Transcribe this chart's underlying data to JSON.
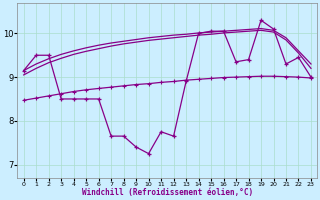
{
  "x": [
    0,
    1,
    2,
    3,
    4,
    5,
    6,
    7,
    8,
    9,
    10,
    11,
    12,
    13,
    14,
    15,
    16,
    17,
    18,
    19,
    20,
    21,
    22,
    23
  ],
  "upper1": [
    9.15,
    9.3,
    9.42,
    9.52,
    9.6,
    9.67,
    9.73,
    9.78,
    9.82,
    9.86,
    9.9,
    9.93,
    9.96,
    9.98,
    10.01,
    10.03,
    10.05,
    10.07,
    10.09,
    10.11,
    10.07,
    9.9,
    9.6,
    9.3
  ],
  "upper2": [
    9.05,
    9.2,
    9.33,
    9.43,
    9.52,
    9.59,
    9.65,
    9.71,
    9.76,
    9.8,
    9.84,
    9.87,
    9.9,
    9.93,
    9.96,
    9.98,
    10.01,
    10.03,
    10.05,
    10.07,
    10.03,
    9.85,
    9.55,
    9.2
  ],
  "lower": [
    8.47,
    8.52,
    8.57,
    8.62,
    8.67,
    8.71,
    8.74,
    8.77,
    8.8,
    8.83,
    8.85,
    8.88,
    8.9,
    8.93,
    8.95,
    8.97,
    8.99,
    9.0,
    9.01,
    9.02,
    9.02,
    9.01,
    9.0,
    8.98
  ],
  "actual": [
    9.15,
    9.5,
    9.5,
    8.5,
    8.5,
    8.5,
    8.5,
    7.65,
    7.65,
    7.4,
    7.25,
    7.75,
    7.65,
    8.9,
    10.0,
    10.05,
    10.05,
    9.35,
    9.4,
    10.3,
    10.1,
    9.3,
    9.45,
    9.0
  ],
  "line_color": "#880088",
  "bg_color": "#cceeff",
  "grid_color": "#aaddcc",
  "xlabel": "Windchill (Refroidissement éolien,°C)",
  "yticks": [
    7,
    8,
    9,
    10
  ],
  "xticks": [
    0,
    1,
    2,
    3,
    4,
    5,
    6,
    7,
    8,
    9,
    10,
    11,
    12,
    13,
    14,
    15,
    16,
    17,
    18,
    19,
    20,
    21,
    22,
    23
  ],
  "xlim": [
    -0.5,
    23.5
  ],
  "ylim": [
    6.7,
    10.7
  ]
}
